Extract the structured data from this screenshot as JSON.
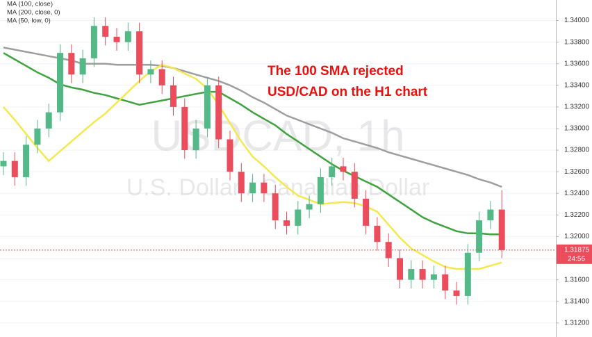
{
  "chart_data": {
    "type": "candlestick",
    "watermark_title": "USDCAD, 1h",
    "watermark_subtitle": "U.S. Dollar / Canadian Dollar",
    "annotation": [
      "The 100 SMA rejected",
      "USD/CAD on the H1 chart"
    ],
    "ylim": [
      1.3107,
      1.3419
    ],
    "yticks": [
      {
        "value": 1.312,
        "label": "1.31200"
      },
      {
        "value": 1.314,
        "label": "1.31400"
      },
      {
        "value": 1.316,
        "label": "1.31600"
      },
      {
        "value": 1.318,
        "label": "1.31800"
      },
      {
        "value": 1.32,
        "label": "1.32000"
      },
      {
        "value": 1.322,
        "label": "1.32200"
      },
      {
        "value": 1.324,
        "label": "1.32400"
      },
      {
        "value": 1.326,
        "label": "1.32600"
      },
      {
        "value": 1.328,
        "label": "1.32800"
      },
      {
        "value": 1.33,
        "label": "1.33000"
      },
      {
        "value": 1.332,
        "label": "1.33200"
      },
      {
        "value": 1.334,
        "label": "1.33400"
      },
      {
        "value": 1.336,
        "label": "1.33600"
      },
      {
        "value": 1.338,
        "label": "1.33800"
      },
      {
        "value": 1.34,
        "label": "1.34000"
      }
    ],
    "grid": true,
    "up_color": "#53b987",
    "down_color": "#eb4d5c",
    "last_price": {
      "value": 1.31875,
      "label": "1.31875"
    },
    "countdown": "24:56",
    "candles": {
      "open": [
        1.3265,
        1.327,
        1.3255,
        1.3285,
        1.33,
        1.3315,
        1.337,
        1.335,
        1.3365,
        1.3395,
        1.3385,
        1.338,
        1.339,
        1.335,
        1.3355,
        1.334,
        1.332,
        1.328,
        1.33,
        1.334,
        1.329,
        1.326,
        1.324,
        1.325,
        1.324,
        1.3215,
        1.321,
        1.3225,
        1.323,
        1.3255,
        1.3265,
        1.326,
        1.3235,
        1.321,
        1.3195,
        1.318,
        1.316,
        1.317,
        1.316,
        1.3165,
        1.315,
        1.3145,
        1.3185,
        1.3215,
        1.3225
      ],
      "high": [
        1.3278,
        1.3278,
        1.3293,
        1.3308,
        1.3323,
        1.3378,
        1.3378,
        1.3373,
        1.3403,
        1.3403,
        1.3393,
        1.3398,
        1.3398,
        1.3363,
        1.3363,
        1.3348,
        1.3328,
        1.3308,
        1.3348,
        1.3348,
        1.3298,
        1.3268,
        1.3258,
        1.3258,
        1.3248,
        1.3223,
        1.3233,
        1.3238,
        1.3263,
        1.3273,
        1.3273,
        1.3268,
        1.3243,
        1.3218,
        1.3203,
        1.3188,
        1.3178,
        1.3178,
        1.3173,
        1.3173,
        1.3158,
        1.3193,
        1.3223,
        1.3233,
        1.3243
      ],
      "low": [
        1.3257,
        1.3247,
        1.3247,
        1.3277,
        1.3292,
        1.3307,
        1.3342,
        1.3342,
        1.3357,
        1.3377,
        1.3372,
        1.3372,
        1.3342,
        1.3342,
        1.3332,
        1.3312,
        1.3272,
        1.3272,
        1.3292,
        1.3282,
        1.3252,
        1.3232,
        1.3232,
        1.3232,
        1.3207,
        1.3202,
        1.3202,
        1.3217,
        1.3222,
        1.3247,
        1.3252,
        1.3227,
        1.3202,
        1.3187,
        1.3172,
        1.3152,
        1.3152,
        1.3152,
        1.3152,
        1.3142,
        1.3137,
        1.3137,
        1.3177,
        1.3207,
        1.318
      ],
      "close": [
        1.327,
        1.3255,
        1.3285,
        1.33,
        1.3315,
        1.337,
        1.335,
        1.3365,
        1.3395,
        1.3385,
        1.338,
        1.339,
        1.335,
        1.3355,
        1.334,
        1.332,
        1.328,
        1.33,
        1.334,
        1.329,
        1.326,
        1.324,
        1.325,
        1.324,
        1.3215,
        1.321,
        1.3225,
        1.323,
        1.3255,
        1.3265,
        1.326,
        1.3235,
        1.321,
        1.3195,
        1.318,
        1.316,
        1.317,
        1.316,
        1.3165,
        1.315,
        1.3145,
        1.3185,
        1.3215,
        1.3225,
        1.31875
      ]
    },
    "series": [
      {
        "name": "MA (100, close)",
        "color": "#3ea33e",
        "values": [
          1.337,
          1.3364,
          1.3358,
          1.3352,
          1.3347,
          1.3341,
          1.3338,
          1.3336,
          1.3333,
          1.3331,
          1.3328,
          1.3325,
          1.3322,
          1.3324,
          1.3326,
          1.3328,
          1.333,
          1.3332,
          1.3334,
          1.3334,
          1.3328,
          1.3322,
          1.3315,
          1.3309,
          1.3303,
          1.3295,
          1.3288,
          1.3281,
          1.3274,
          1.3267,
          1.3261,
          1.3256,
          1.3251,
          1.3246,
          1.3239,
          1.3232,
          1.3225,
          1.3218,
          1.3213,
          1.3209,
          1.3205,
          1.3203,
          1.3203,
          1.3202,
          1.3202
        ]
      },
      {
        "name": "MA (200, close, 0)",
        "color": "#9e9e9e",
        "values": [
          1.3375,
          1.3373,
          1.3371,
          1.3369,
          1.3367,
          1.3365,
          1.3363,
          1.336,
          1.336,
          1.336,
          1.3359,
          1.3359,
          1.3359,
          1.3359,
          1.3358,
          1.3356,
          1.3353,
          1.335,
          1.3347,
          1.3344,
          1.334,
          1.3335,
          1.3329,
          1.3324,
          1.3318,
          1.3312,
          1.3308,
          1.3304,
          1.33,
          1.3296,
          1.3291,
          1.3288,
          1.3285,
          1.3282,
          1.3278,
          1.3275,
          1.3272,
          1.3269,
          1.3266,
          1.3263,
          1.326,
          1.3257,
          1.3253,
          1.325,
          1.3246
        ]
      },
      {
        "name": "MA (50, low, 0)",
        "color": "#f4e84c",
        "values": [
          1.332,
          1.3308,
          1.3295,
          1.3282,
          1.327,
          1.3279,
          1.3288,
          1.3297,
          1.3306,
          1.3314,
          1.3324,
          1.3334,
          1.3344,
          1.3353,
          1.3359,
          1.3356,
          1.3351,
          1.3346,
          1.3337,
          1.3322,
          1.3305,
          1.3288,
          1.3274,
          1.3265,
          1.3255,
          1.3246,
          1.3238,
          1.3234,
          1.323,
          1.3231,
          1.3232,
          1.3231,
          1.3228,
          1.3223,
          1.3211,
          1.3199,
          1.3189,
          1.3183,
          1.3177,
          1.3172,
          1.317,
          1.317,
          1.317,
          1.3173,
          1.3176
        ]
      }
    ]
  }
}
